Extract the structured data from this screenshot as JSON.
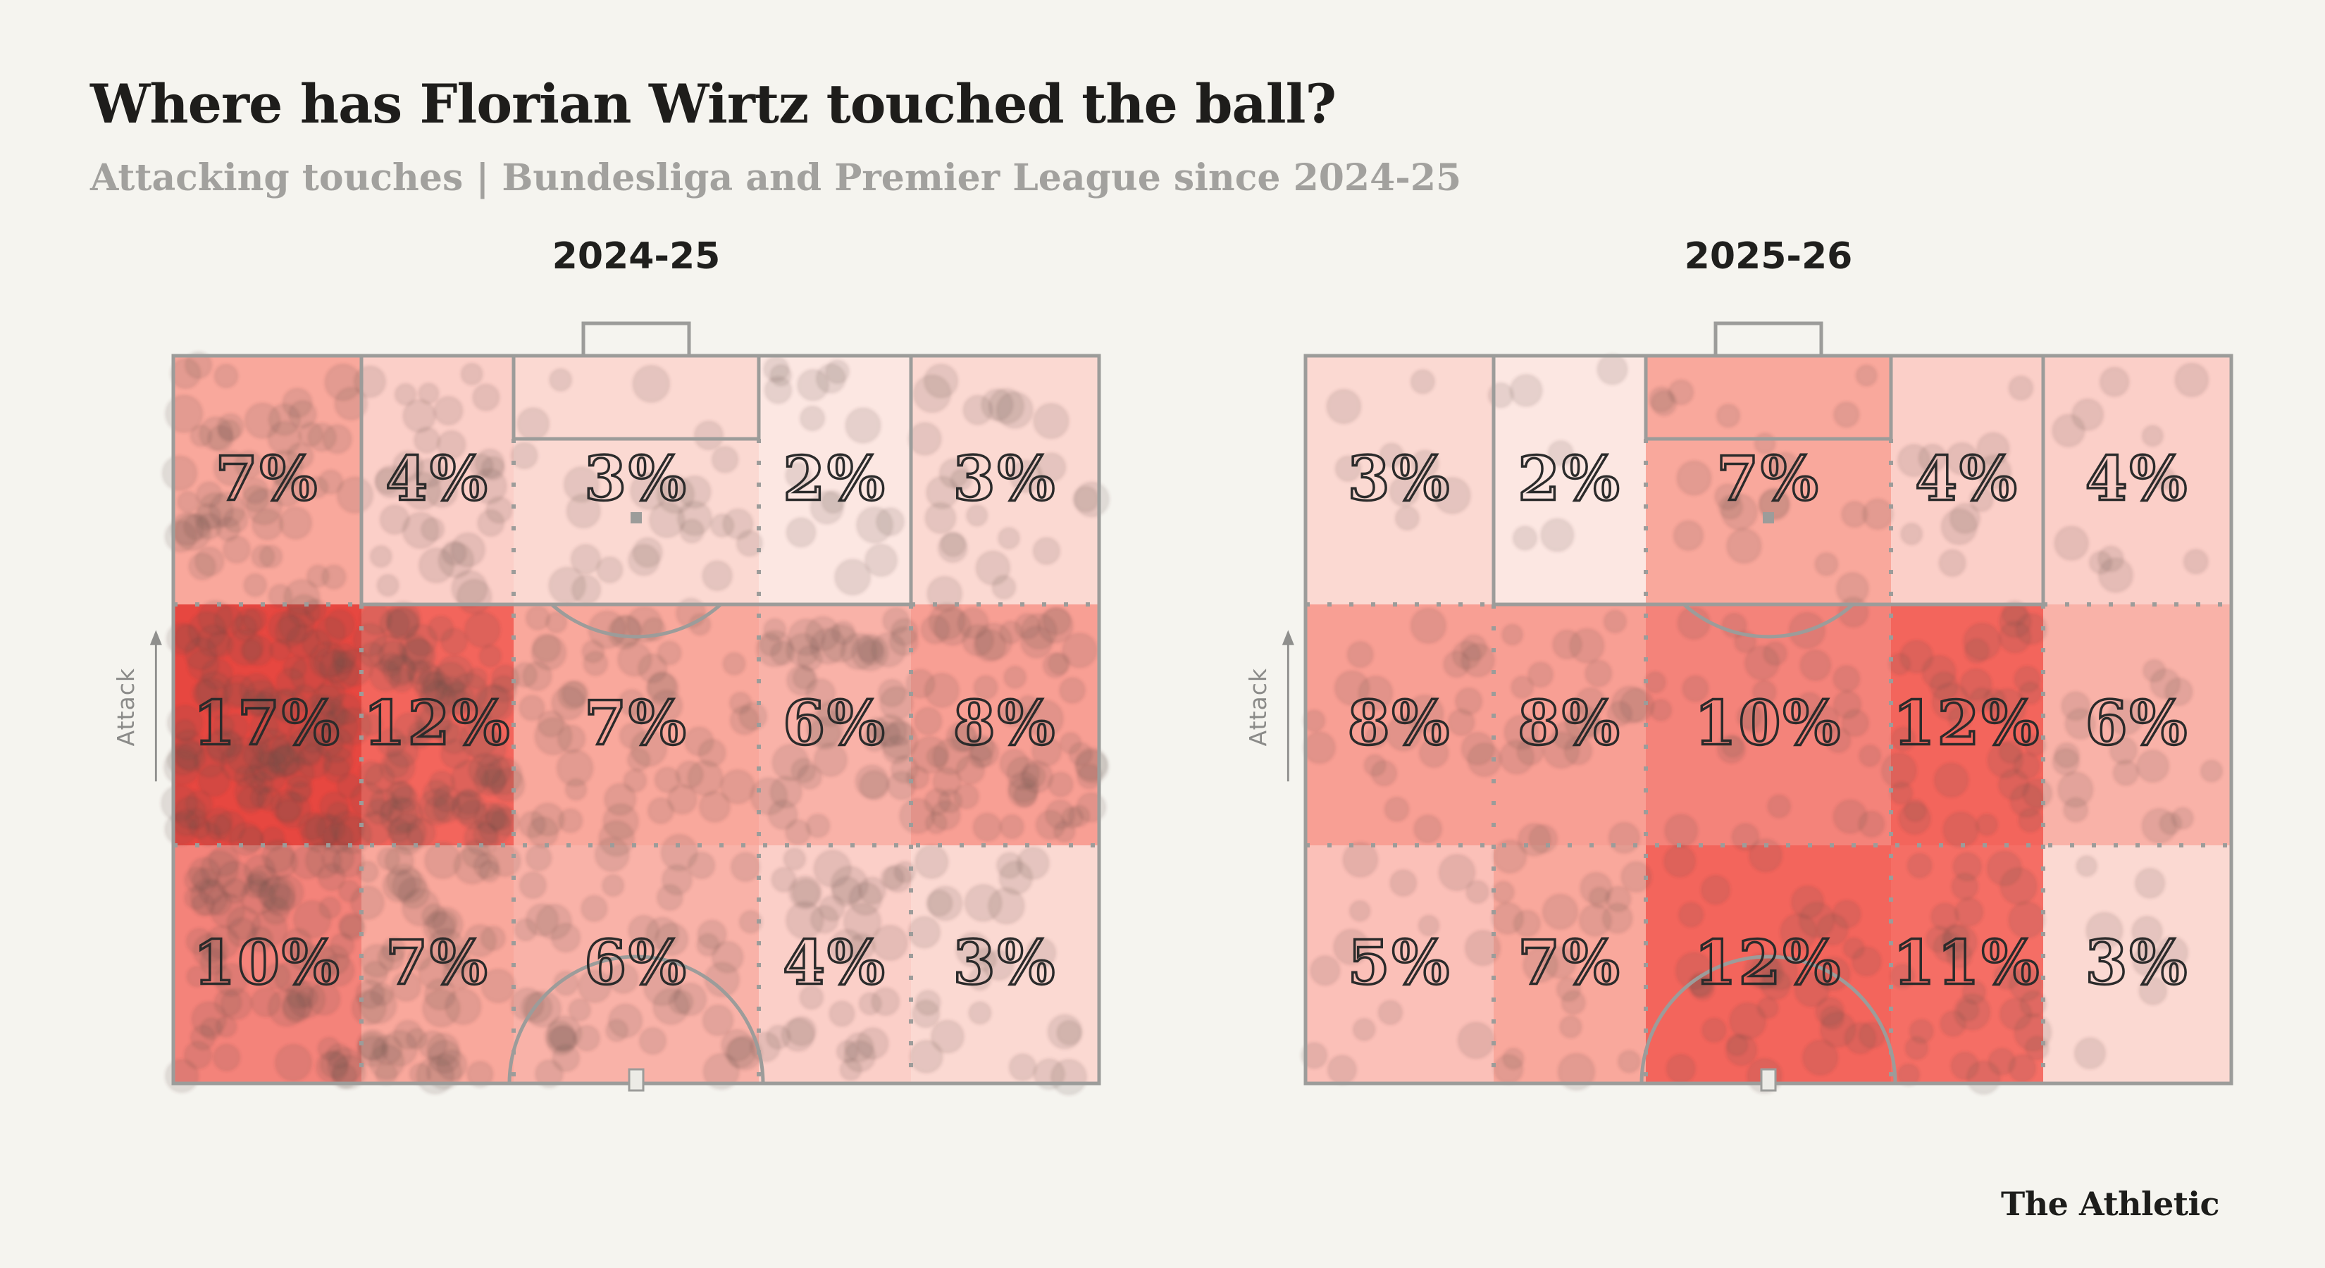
{
  "title": "Where has Florian Wirtz touched the ball?",
  "subtitle": "Attacking touches | Bundesliga and Premier League since 2024-25",
  "attack_label": "Attack",
  "credit": "The Athletic",
  "colors": {
    "background": "#f5f4ef",
    "pitch_line": "#9c9c9a",
    "value_label": "#2b2b2b",
    "title_text": "#1e1d1b",
    "subtitle_text": "#a2a19e",
    "season_text": "#1f1f1d",
    "attack_text": "#8b8b89",
    "touch_dot": "rgba(104,78,72,0.15)",
    "touch_dot_ring": "rgba(90,60,55,0.10)",
    "center_spot_fill": "#ecebe6"
  },
  "chart_data": [
    {
      "type": "heatmap",
      "season": "2024-25",
      "grid": {
        "rows": 3,
        "cols": 5,
        "orientation": "attacking-goal-at-top"
      },
      "values_pct": [
        [
          7,
          4,
          3,
          2,
          3
        ],
        [
          17,
          12,
          7,
          6,
          8
        ],
        [
          10,
          7,
          6,
          4,
          3
        ]
      ],
      "labels": [
        [
          "7%",
          "4%",
          "3%",
          "2%",
          "3%"
        ],
        [
          "17%",
          "12%",
          "7%",
          "6%",
          "8%"
        ],
        [
          "10%",
          "7%",
          "6%",
          "4%",
          "3%"
        ]
      ],
      "cell_colors": [
        [
          "#f9a89c",
          "#fbcfc8",
          "#fbd9d2",
          "#fce7e2",
          "#fbd9d2"
        ],
        [
          "#e74740",
          "#f3655c",
          "#f9a89c",
          "#f9b2a8",
          "#f89f94"
        ],
        [
          "#f4837a",
          "#f9a89c",
          "#f9b2a8",
          "#fbcfc8",
          "#fbd9d2"
        ]
      ],
      "touch_dot_density": 8
    },
    {
      "type": "heatmap",
      "season": "2025-26",
      "grid": {
        "rows": 3,
        "cols": 5,
        "orientation": "attacking-goal-at-top"
      },
      "values_pct": [
        [
          3,
          2,
          7,
          4,
          4
        ],
        [
          8,
          8,
          10,
          12,
          6
        ],
        [
          5,
          7,
          12,
          11,
          3
        ]
      ],
      "labels": [
        [
          "3%",
          "2%",
          "7%",
          "4%",
          "4%"
        ],
        [
          "8%",
          "8%",
          "10%",
          "12%",
          "6%"
        ],
        [
          "5%",
          "7%",
          "12%",
          "11%",
          "3%"
        ]
      ],
      "cell_colors": [
        [
          "#fbd9d2",
          "#fce7e2",
          "#f9a89c",
          "#fbcfc8",
          "#fbcfc8"
        ],
        [
          "#f89f94",
          "#f89f94",
          "#f4837a",
          "#f3655c",
          "#f9b2a8"
        ],
        [
          "#fbc0b8",
          "#f9a89c",
          "#f3655c",
          "#f56e65",
          "#fbd9d2"
        ]
      ],
      "touch_dot_density": 2.8
    }
  ]
}
